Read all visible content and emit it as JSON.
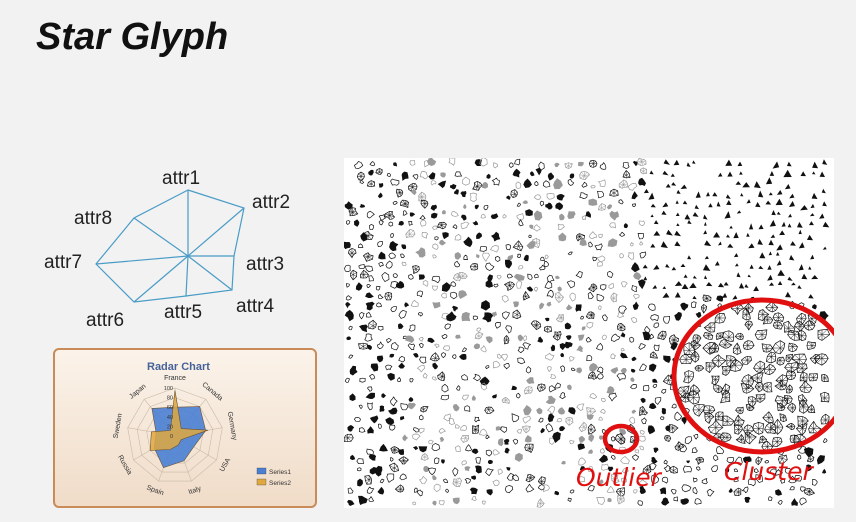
{
  "slide": {
    "title": "Star Glyph"
  },
  "glyph_diagram": {
    "labels": [
      "attr1",
      "attr2",
      "attr3",
      "attr4",
      "attr5",
      "attr6",
      "attr7",
      "attr8"
    ],
    "line_color": "#4a9cc7"
  },
  "radar_chart": {
    "title": "Radar Chart",
    "axes": [
      "France",
      "Canada",
      "Germany",
      "USA",
      "Italy",
      "Spain",
      "Russia",
      "Sweden",
      "Japan"
    ],
    "ticks": [
      "100",
      "80",
      "60",
      "40",
      "20",
      "0"
    ],
    "series": [
      {
        "name": "Series1",
        "color": "#4a7fd4",
        "values": [
          60,
          80,
          65,
          45,
          55,
          70,
          50,
          40,
          75
        ]
      },
      {
        "name": "Series2",
        "color": "#e0a840",
        "values": [
          95,
          20,
          70,
          15,
          20,
          30,
          60,
          50,
          15
        ]
      }
    ]
  },
  "scatter_glyphs": {
    "annotations": {
      "outlier": "Outlier",
      "cluster": "Cluster"
    },
    "highlight_color": "#e01010"
  }
}
